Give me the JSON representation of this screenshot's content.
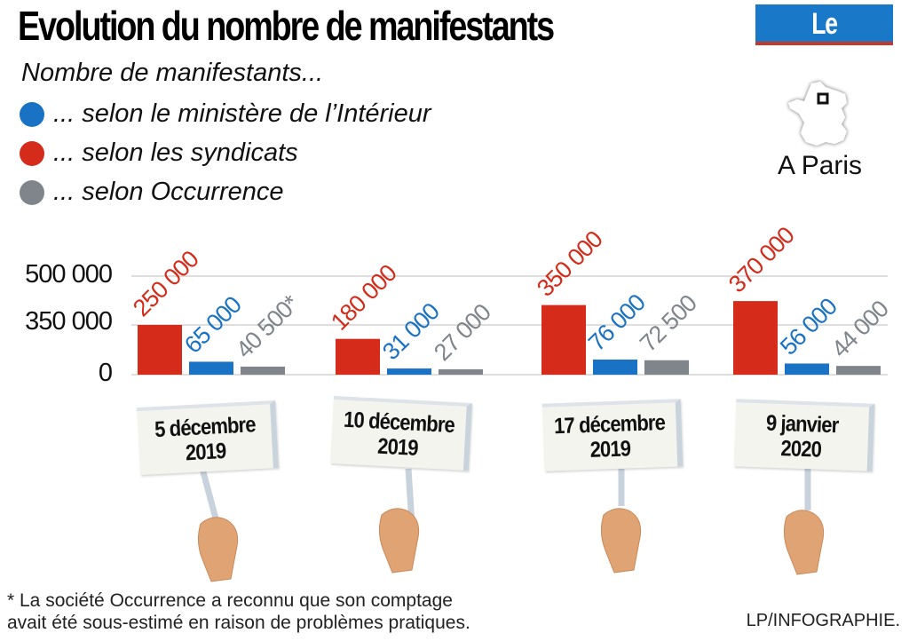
{
  "header": {
    "title": "Evolution du nombre de manifestants",
    "logo": "Le Parisien"
  },
  "subtitle": "Nombre de manifestants...",
  "legend": [
    {
      "label": "... selon le ministère de l’Intérieur",
      "color": "#1a72c4"
    },
    {
      "label": "... selon les syndicats",
      "color": "#d42b1a"
    },
    {
      "label": "... selon Occurrence",
      "color": "#7f858b"
    }
  ],
  "location": {
    "label": "A Paris",
    "icon": "france-map-icon"
  },
  "chart_data": {
    "type": "bar",
    "title": "Evolution du nombre de manifestants",
    "subtitle": "Nombre de manifestants... A Paris",
    "categories": [
      "5 décembre 2019",
      "10 décembre 2019",
      "17 décembre 2019",
      "9 janvier 2020"
    ],
    "category_lines": [
      [
        "5 décembre",
        "2019"
      ],
      [
        "10 décembre",
        "2019"
      ],
      [
        "17 décembre",
        "2019"
      ],
      [
        "9 janvier",
        "2020"
      ]
    ],
    "series": [
      {
        "name": "selon les syndicats",
        "color": "#d42b1a",
        "values": [
          250000,
          180000,
          350000,
          370000
        ],
        "labels": [
          "250 000",
          "180 000",
          "350 000",
          "370 000"
        ]
      },
      {
        "name": "selon le ministère de l'Intérieur",
        "color": "#1a72c4",
        "values": [
          65000,
          31000,
          76000,
          56000
        ],
        "labels": [
          "65 000",
          "31 000",
          "76 000",
          "56 000"
        ]
      },
      {
        "name": "selon Occurrence",
        "color": "#7f858b",
        "values": [
          40500,
          27000,
          72500,
          44000
        ],
        "labels": [
          "40 500*",
          "27 000",
          "72 500",
          "44 000"
        ]
      }
    ],
    "yticks": [
      "0",
      "350 000",
      "500 000"
    ],
    "ytick_values": [
      0,
      350000,
      500000
    ],
    "grid": true,
    "legend_position": "top-left",
    "annotation": "* La société Occurrence a reconnu que son comptage avait été sous-estimé en raison de problèmes pratiques."
  },
  "footnote": [
    "* La société Occurrence a reconnu que son comptage",
    "avait été sous-estimé en raison de problèmes pratiques."
  ],
  "credit": "LP/INFOGRAPHIE."
}
